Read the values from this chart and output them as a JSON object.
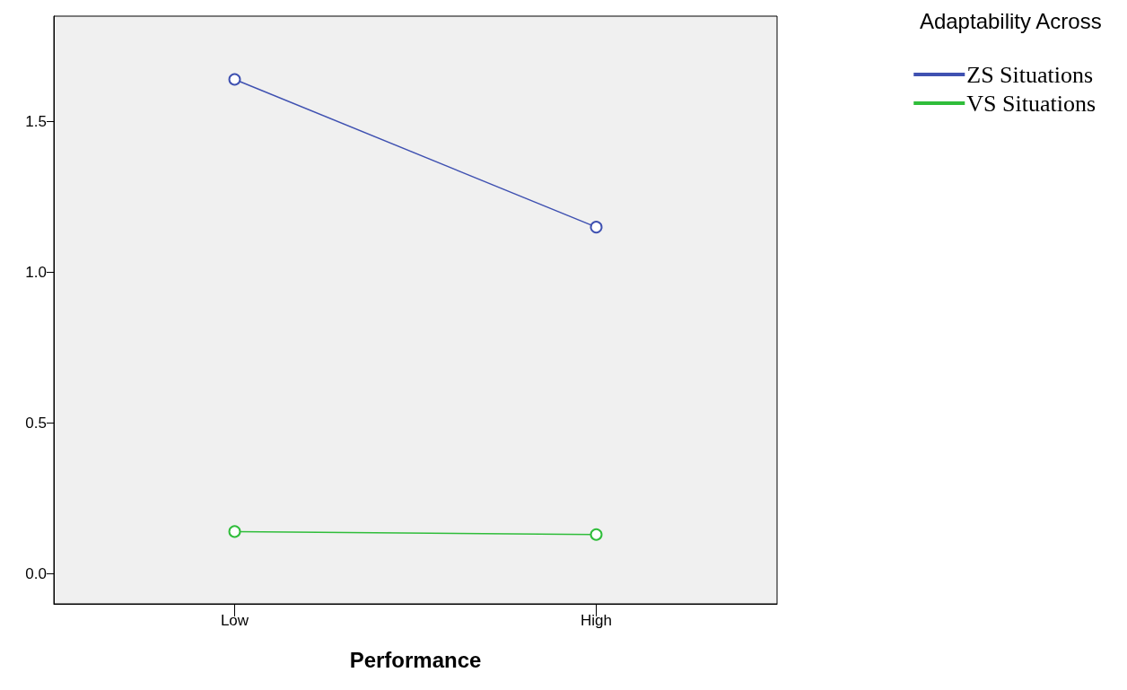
{
  "chart_data": {
    "type": "line",
    "xlabel": "Performance",
    "legend_title": "Adaptability Across",
    "categories": [
      "Low",
      "High"
    ],
    "series": [
      {
        "name": "ZS Situations",
        "color": "#3f51b1",
        "values": [
          1.64,
          1.15
        ]
      },
      {
        "name": "VS Situations",
        "color": "#2fbd3a",
        "values": [
          0.14,
          0.13
        ]
      }
    ],
    "ylim": [
      -0.1,
      1.85
    ],
    "yticks": [
      {
        "value": 0,
        "label": "0.0"
      },
      {
        "value": 0.5,
        "label": "0.5"
      },
      {
        "value": 1,
        "label": "1.0"
      },
      {
        "value": 1.5,
        "label": "1.5"
      }
    ],
    "grid": false,
    "legend": "top right",
    "marker": "circle",
    "line_style": "solid"
  }
}
